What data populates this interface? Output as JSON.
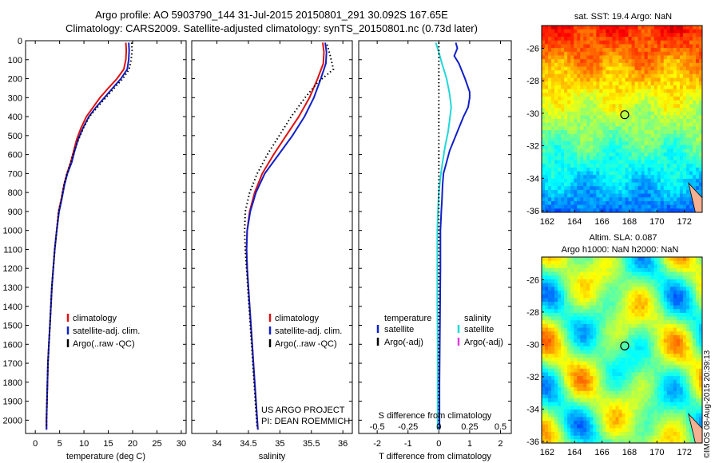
{
  "header": {
    "line1": "Argo profile: AO 5903790_144 31-Jul-2015 20150801_291 30.092S 167.65E",
    "line2": "Climatology: CARS2009. Satellite-adjusted climatology: synTS_20150801.nc (0.73d later)"
  },
  "credit": "©IMOS 08-Aug-2015 20:39:13",
  "colors": {
    "climatology": "#e01010",
    "satellite": "#1020c8",
    "argo": "#000000",
    "satellite_salinity": "#20d8d8",
    "argo_adj_salinity": "#e040e0"
  },
  "chart_data": [
    {
      "type": "line",
      "panel": "temperature",
      "xlabel": "temperature (deg C)",
      "xlim": [
        -2,
        31
      ],
      "xticks": [
        0,
        5,
        10,
        15,
        20,
        25,
        30
      ],
      "ylim": [
        0,
        2070
      ],
      "yticks": [
        0,
        100,
        200,
        300,
        400,
        500,
        600,
        700,
        800,
        900,
        1000,
        1100,
        1200,
        1300,
        1400,
        1500,
        1600,
        1700,
        1800,
        1900,
        2000
      ],
      "legend": [
        "climatology",
        "satellite-adj. clim.",
        "Argo(..raw -QC)"
      ],
      "series": [
        {
          "name": "climatology",
          "color": "#e01010",
          "points": [
            [
              18.6,
              10
            ],
            [
              18.7,
              50
            ],
            [
              18.6,
              100
            ],
            [
              18.2,
              150
            ],
            [
              16.8,
              200
            ],
            [
              15.0,
              250
            ],
            [
              13.3,
              300
            ],
            [
              11.9,
              350
            ],
            [
              10.5,
              400
            ],
            [
              9.4,
              460
            ],
            [
              8.5,
              520
            ],
            [
              7.9,
              580
            ],
            [
              7.3,
              640
            ],
            [
              6.5,
              700
            ],
            [
              5.9,
              760
            ],
            [
              5.3,
              840
            ],
            [
              4.8,
              900
            ],
            [
              4.4,
              1000
            ],
            [
              4.0,
              1100
            ],
            [
              3.7,
              1200
            ],
            [
              3.4,
              1300
            ],
            [
              3.2,
              1400
            ],
            [
              3.0,
              1500
            ],
            [
              2.8,
              1600
            ],
            [
              2.6,
              1700
            ],
            [
              2.5,
              1800
            ],
            [
              2.4,
              1900
            ],
            [
              2.3,
              2000
            ],
            [
              2.3,
              2050
            ]
          ]
        },
        {
          "name": "satellite-adj. clim.",
          "color": "#1020c8",
          "points": [
            [
              19.2,
              10
            ],
            [
              19.3,
              50
            ],
            [
              19.2,
              100
            ],
            [
              18.9,
              150
            ],
            [
              17.6,
              200
            ],
            [
              15.9,
              250
            ],
            [
              14.2,
              300
            ],
            [
              12.5,
              350
            ],
            [
              11.0,
              400
            ],
            [
              9.8,
              460
            ],
            [
              8.8,
              520
            ],
            [
              8.1,
              580
            ],
            [
              7.5,
              640
            ],
            [
              6.6,
              700
            ],
            [
              6.0,
              760
            ],
            [
              5.4,
              840
            ],
            [
              4.9,
              900
            ],
            [
              4.4,
              1000
            ],
            [
              4.0,
              1100
            ],
            [
              3.7,
              1200
            ],
            [
              3.4,
              1300
            ],
            [
              3.2,
              1400
            ],
            [
              3.0,
              1500
            ],
            [
              2.8,
              1600
            ],
            [
              2.6,
              1700
            ],
            [
              2.5,
              1800
            ],
            [
              2.4,
              1900
            ],
            [
              2.3,
              2000
            ],
            [
              2.3,
              2050
            ]
          ]
        },
        {
          "name": "Argo(..raw -QC)",
          "color": "#000000",
          "dotted": true,
          "points": [
            [
              19.8,
              10
            ],
            [
              19.9,
              50
            ],
            [
              19.7,
              100
            ],
            [
              19.3,
              150
            ],
            [
              18.0,
              200
            ],
            [
              16.2,
              250
            ],
            [
              14.5,
              300
            ],
            [
              12.8,
              350
            ],
            [
              11.1,
              400
            ],
            [
              9.9,
              460
            ],
            [
              8.9,
              520
            ],
            [
              8.0,
              580
            ],
            [
              7.3,
              640
            ],
            [
              6.5,
              700
            ],
            [
              5.9,
              760
            ],
            [
              5.3,
              840
            ],
            [
              4.8,
              900
            ],
            [
              4.4,
              1000
            ],
            [
              4.0,
              1100
            ],
            [
              3.7,
              1200
            ],
            [
              3.4,
              1300
            ],
            [
              3.2,
              1400
            ],
            [
              3.0,
              1500
            ],
            [
              2.8,
              1600
            ],
            [
              2.6,
              1700
            ],
            [
              2.5,
              1800
            ],
            [
              2.4,
              1900
            ],
            [
              2.3,
              2000
            ],
            [
              2.3,
              2040
            ]
          ]
        }
      ]
    },
    {
      "type": "line",
      "panel": "salinity",
      "xlabel": "salinity",
      "xlim": [
        33.6,
        36.15
      ],
      "xticks": [
        34,
        34.5,
        35,
        35.5,
        36
      ],
      "ylim": [
        0,
        2070
      ],
      "legend": [
        "climatology",
        "satellite-adj. clim.",
        "Argo(..raw -QC)"
      ],
      "annotation": [
        "US ARGO PROJECT",
        "PI: DEAN ROEMMICH"
      ],
      "series": [
        {
          "name": "climatology",
          "color": "#e01010",
          "points": [
            [
              35.68,
              10
            ],
            [
              35.7,
              60
            ],
            [
              35.69,
              120
            ],
            [
              35.6,
              200
            ],
            [
              35.47,
              300
            ],
            [
              35.3,
              400
            ],
            [
              35.1,
              500
            ],
            [
              34.9,
              600
            ],
            [
              34.72,
              700
            ],
            [
              34.6,
              800
            ],
            [
              34.52,
              900
            ],
            [
              34.48,
              1000
            ],
            [
              34.47,
              1100
            ],
            [
              34.48,
              1200
            ],
            [
              34.5,
              1300
            ],
            [
              34.52,
              1400
            ],
            [
              34.54,
              1500
            ],
            [
              34.56,
              1600
            ],
            [
              34.58,
              1700
            ],
            [
              34.6,
              1800
            ],
            [
              34.62,
              1900
            ],
            [
              34.64,
              2000
            ],
            [
              34.65,
              2050
            ]
          ]
        },
        {
          "name": "satellite-adj. clim.",
          "color": "#1020c8",
          "points": [
            [
              35.72,
              10
            ],
            [
              35.74,
              60
            ],
            [
              35.73,
              120
            ],
            [
              35.65,
              200
            ],
            [
              35.54,
              300
            ],
            [
              35.39,
              400
            ],
            [
              35.2,
              500
            ],
            [
              34.98,
              600
            ],
            [
              34.76,
              700
            ],
            [
              34.62,
              800
            ],
            [
              34.53,
              900
            ],
            [
              34.48,
              1000
            ],
            [
              34.47,
              1100
            ],
            [
              34.48,
              1200
            ],
            [
              34.5,
              1300
            ],
            [
              34.52,
              1400
            ],
            [
              34.54,
              1500
            ],
            [
              34.56,
              1600
            ],
            [
              34.58,
              1700
            ],
            [
              34.6,
              1800
            ],
            [
              34.62,
              1900
            ],
            [
              34.64,
              2000
            ],
            [
              34.65,
              2050
            ]
          ]
        },
        {
          "name": "Argo(..raw -QC)",
          "color": "#000000",
          "dotted": true,
          "points": [
            [
              35.75,
              20
            ],
            [
              35.8,
              80
            ],
            [
              35.85,
              150
            ],
            [
              35.6,
              220
            ],
            [
              35.4,
              300
            ],
            [
              35.18,
              400
            ],
            [
              34.99,
              500
            ],
            [
              34.8,
              600
            ],
            [
              34.64,
              700
            ],
            [
              34.52,
              800
            ],
            [
              34.45,
              900
            ],
            [
              34.44,
              1000
            ],
            [
              34.45,
              1100
            ],
            [
              34.47,
              1200
            ],
            [
              34.49,
              1300
            ],
            [
              34.51,
              1400
            ],
            [
              34.53,
              1500
            ],
            [
              34.55,
              1600
            ],
            [
              34.57,
              1700
            ],
            [
              34.59,
              1800
            ],
            [
              34.61,
              1900
            ],
            [
              34.63,
              2000
            ],
            [
              34.64,
              2040
            ]
          ]
        }
      ]
    },
    {
      "type": "line",
      "panel": "difference",
      "xlabel": "T difference from climatology",
      "xlabel_top": "S difference from climatology",
      "xlim": [
        -2.6,
        2.35
      ],
      "xticks": [
        -2,
        -1,
        0,
        1,
        2
      ],
      "s_ticks": [
        -0.5,
        -0.25,
        0,
        0.25,
        0.5
      ],
      "ylim": [
        0,
        2070
      ],
      "legend_temperature": [
        "temperature",
        "satellite",
        "Argo(-adj)"
      ],
      "legend_salinity": [
        "salinity",
        "satellite",
        "Argo(-adj)"
      ],
      "series": [
        {
          "name": "temperature satellite",
          "color": "#1020c8",
          "points": [
            [
              0.55,
              10
            ],
            [
              0.6,
              40
            ],
            [
              0.5,
              80
            ],
            [
              0.65,
              120
            ],
            [
              0.85,
              200
            ],
            [
              1.0,
              270
            ],
            [
              1.0,
              300
            ],
            [
              0.95,
              350
            ],
            [
              0.8,
              400
            ],
            [
              0.65,
              460
            ],
            [
              0.5,
              520
            ],
            [
              0.35,
              580
            ],
            [
              0.25,
              640
            ],
            [
              0.15,
              700
            ],
            [
              0.12,
              760
            ],
            [
              0.1,
              840
            ],
            [
              0.08,
              900
            ],
            [
              0.05,
              1000
            ],
            [
              0.05,
              1200
            ],
            [
              0.04,
              1400
            ],
            [
              0.03,
              1600
            ],
            [
              0.02,
              1800
            ],
            [
              0.02,
              2000
            ],
            [
              0.02,
              2050
            ]
          ]
        },
        {
          "name": "salinity satellite",
          "color": "#20d8d8",
          "points": [
            [
              -0.1,
              10
            ],
            [
              0.0,
              60
            ],
            [
              0.1,
              120
            ],
            [
              0.25,
              200
            ],
            [
              0.35,
              280
            ],
            [
              0.4,
              350
            ],
            [
              0.35,
              420
            ],
            [
              0.3,
              480
            ],
            [
              0.2,
              560
            ],
            [
              0.12,
              640
            ],
            [
              0.05,
              720
            ],
            [
              0.0,
              800
            ],
            [
              -0.03,
              900
            ],
            [
              -0.05,
              1000
            ],
            [
              -0.05,
              1200
            ],
            [
              -0.05,
              1400
            ],
            [
              -0.04,
              1600
            ],
            [
              -0.04,
              1800
            ],
            [
              -0.04,
              2000
            ],
            [
              -0.04,
              2050
            ]
          ]
        },
        {
          "name": "zero",
          "color": "#000000",
          "dotted": true,
          "points": [
            [
              0.0,
              10
            ],
            [
              0.0,
              2050
            ]
          ]
        }
      ]
    },
    {
      "type": "heatmap",
      "panel": "sst-map",
      "title": "sat. SST: 19.4 Argo: NaN",
      "xlim": [
        161.6,
        173.3
      ],
      "ylim": [
        -36.1,
        -24.6
      ],
      "xticks": [
        162,
        164,
        166,
        168,
        170,
        172
      ],
      "yticks": [
        -26,
        -28,
        -30,
        -32,
        -34,
        -36
      ],
      "marker": [
        167.65,
        -30.09
      ]
    },
    {
      "type": "heatmap",
      "panel": "sla-map",
      "title": "Altim. SLA: 0.087",
      "subtitle": "Argo h1000: NaN h2000: NaN",
      "xlim": [
        161.6,
        173.3
      ],
      "ylim": [
        -36.1,
        -24.6
      ],
      "xticks": [
        162,
        164,
        166,
        168,
        170,
        172
      ],
      "yticks": [
        -26,
        -28,
        -30,
        -32,
        -34,
        -36
      ],
      "marker": [
        167.65,
        -30.09
      ]
    }
  ]
}
